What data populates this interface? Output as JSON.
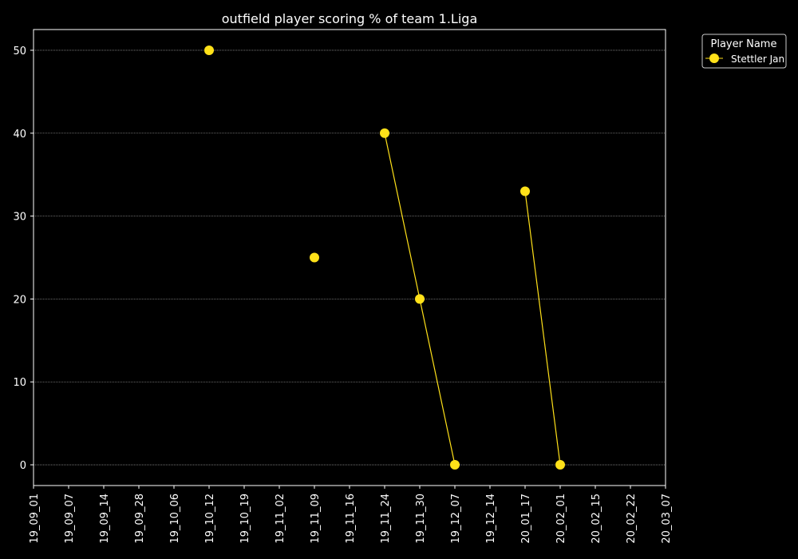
{
  "chart_data": {
    "type": "line",
    "title": "outfield player scoring % of team 1.Liga",
    "xlabel": "",
    "ylabel": "",
    "x_ticks": [
      "19_09_01",
      "19_09_07",
      "19_09_14",
      "19_09_28",
      "19_10_06",
      "19_10_12",
      "19_10_19",
      "19_11_02",
      "19_11_09",
      "19_11_16",
      "19_11_24",
      "19_11_30",
      "19_12_07",
      "19_12_14",
      "20_01_17",
      "20_02_01",
      "20_02_15",
      "20_02_22",
      "20_03_07"
    ],
    "y_ticks": [
      0,
      10,
      20,
      30,
      40,
      50
    ],
    "ylim": [
      -2.5,
      52.5
    ],
    "grid": "horizontal dotted",
    "legend": {
      "title": "Player Name",
      "placement": "outside top-right"
    },
    "series": [
      {
        "name": "Stettler Jan",
        "color": "#ffe119",
        "points": [
          {
            "x": "19_10_12",
            "y": 50
          },
          {
            "x": "19_11_09",
            "y": 25
          },
          {
            "x": "19_11_24",
            "y": 40
          },
          {
            "x": "19_11_30",
            "y": 20
          },
          {
            "x": "19_12_07",
            "y": 0
          },
          {
            "x": "20_01_17",
            "y": 33
          },
          {
            "x": "20_02_01",
            "y": 0
          }
        ],
        "segments": [
          [
            "19_11_24",
            "19_11_30",
            "19_12_07"
          ],
          [
            "20_01_17",
            "20_02_01"
          ]
        ]
      }
    ]
  }
}
